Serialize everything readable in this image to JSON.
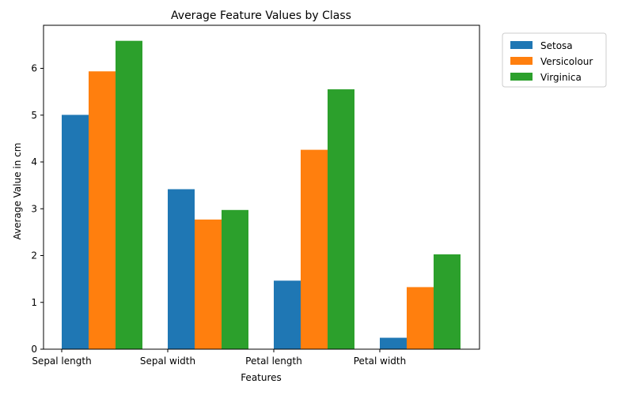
{
  "chart_data": {
    "type": "bar",
    "title": "Average Feature Values by Class",
    "xlabel": "Features",
    "ylabel": "Average Value in cm",
    "categories": [
      "Sepal length",
      "Sepal width",
      "Petal length",
      "Petal width"
    ],
    "series": [
      {
        "name": "Setosa",
        "color": "#1f77b4",
        "values": [
          5.006,
          3.418,
          1.464,
          0.244
        ]
      },
      {
        "name": "Versicolour",
        "color": "#ff7f0e",
        "values": [
          5.936,
          2.77,
          4.26,
          1.326
        ]
      },
      {
        "name": "Virginica",
        "color": "#2ca02c",
        "values": [
          6.588,
          2.974,
          5.552,
          2.026
        ]
      }
    ],
    "ylim": [
      0,
      6.92
    ],
    "yticks": [
      0,
      1,
      2,
      3,
      4,
      5,
      6
    ],
    "grid": false,
    "legend_position": "outside-top-right"
  }
}
